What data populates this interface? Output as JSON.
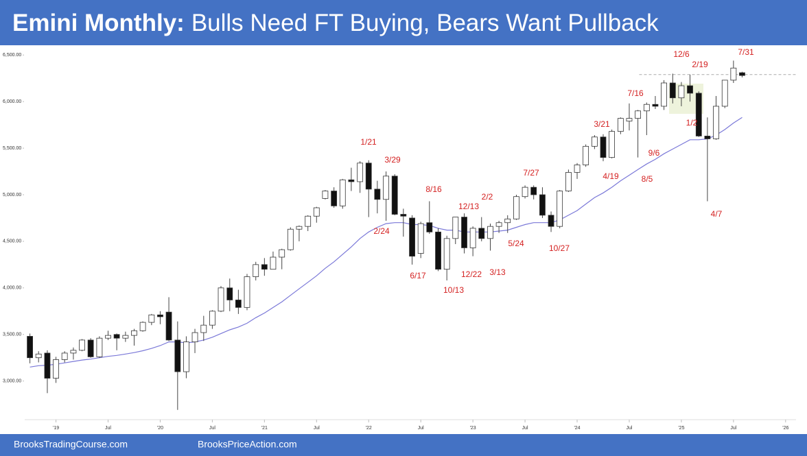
{
  "chart_data": {
    "type": "candlestick",
    "title_bold": "Emini Monthly:",
    "title": "Bulls Need FT Buying, Bears Want Pullback",
    "footer": [
      "BrooksTradingCourse.com",
      "BrooksPriceAction.com"
    ],
    "x": [
      2018.75,
      2018.833,
      2018.917,
      2019.0,
      2019.083,
      2019.167,
      2019.25,
      2019.333,
      2019.417,
      2019.5,
      2019.583,
      2019.667,
      2019.75,
      2019.833,
      2019.917,
      2020.0,
      2020.083,
      2020.167,
      2020.25,
      2020.333,
      2020.417,
      2020.5,
      2020.583,
      2020.667,
      2020.75,
      2020.833,
      2020.917,
      2021.0,
      2021.083,
      2021.167,
      2021.25,
      2021.333,
      2021.417,
      2021.5,
      2021.583,
      2021.667,
      2021.75,
      2021.833,
      2021.917,
      2022.0,
      2022.083,
      2022.167,
      2022.25,
      2022.333,
      2022.417,
      2022.5,
      2022.583,
      2022.667,
      2022.75,
      2022.833,
      2022.917,
      2023.0,
      2023.083,
      2023.167,
      2023.25,
      2023.333,
      2023.417,
      2023.5,
      2023.583,
      2023.667,
      2023.75,
      2023.833,
      2023.917,
      2024.0,
      2024.083,
      2024.167,
      2024.25,
      2024.333,
      2024.417,
      2024.5,
      2024.583,
      2024.667,
      2024.75,
      2024.833,
      2024.917,
      2025.0,
      2025.083,
      2025.167,
      2025.25,
      2025.333,
      2025.417,
      2025.5,
      2025.583
    ],
    "open": [
      3480,
      3250,
      3300,
      3030,
      3230,
      3300,
      3330,
      3440,
      3260,
      3460,
      3500,
      3460,
      3490,
      3540,
      3630,
      3710,
      3740,
      3440,
      3100,
      3420,
      3520,
      3600,
      3750,
      4000,
      3870,
      3790,
      4120,
      4250,
      4200,
      4330,
      4410,
      4630,
      4660,
      4770,
      4960,
      5040,
      4880,
      5160,
      5140,
      5340,
      5060,
      4950,
      5200,
      4790,
      4750,
      4370,
      4700,
      4600,
      4200,
      4530,
      4760,
      4430,
      4640,
      4530,
      4660,
      4700,
      4740,
      4980,
      5080,
      5000,
      4780,
      4660,
      5040,
      5240,
      5320,
      5520,
      5620,
      5400,
      5680,
      5790,
      5820,
      5900,
      5970,
      5950,
      6200,
      6040,
      6170,
      6090,
      5630,
      5600,
      5950,
      6230,
      6310
    ],
    "high": [
      3510,
      3320,
      3330,
      3260,
      3320,
      3360,
      3450,
      3460,
      3480,
      3540,
      3510,
      3530,
      3560,
      3640,
      3720,
      3750,
      3900,
      3640,
      3480,
      3560,
      3700,
      3760,
      4020,
      4100,
      3980,
      4150,
      4280,
      4320,
      4390,
      4420,
      4650,
      4670,
      4780,
      4870,
      5050,
      5080,
      5170,
      5290,
      5360,
      5370,
      5150,
      5250,
      5220,
      4850,
      4780,
      4710,
      4930,
      4640,
      4560,
      4760,
      4800,
      4660,
      4760,
      4690,
      4720,
      4780,
      5000,
      5100,
      5100,
      5080,
      4820,
      5050,
      5270,
      5340,
      5540,
      5640,
      5650,
      5700,
      5830,
      5980,
      5910,
      5990,
      6060,
      6230,
      6300,
      6210,
      6290,
      6110,
      5830,
      6060,
      6230,
      6440,
      6320
    ],
    "low": [
      3190,
      3200,
      2870,
      2980,
      3200,
      3230,
      3320,
      3250,
      3250,
      3440,
      3330,
      3420,
      3380,
      3530,
      3600,
      3610,
      3430,
      2690,
      3030,
      3300,
      3430,
      3560,
      3740,
      3750,
      3720,
      3760,
      4080,
      4130,
      4200,
      4200,
      4400,
      4500,
      4610,
      4700,
      4950,
      4860,
      4850,
      5040,
      5020,
      4760,
      4800,
      4720,
      4780,
      4550,
      4250,
      4320,
      4580,
      4180,
      4080,
      4470,
      4370,
      4340,
      4500,
      4400,
      4590,
      4590,
      4730,
      4960,
      4950,
      4750,
      4600,
      4640,
      5030,
      5170,
      5300,
      5490,
      5360,
      5390,
      5650,
      5690,
      5400,
      5640,
      5920,
      5910,
      5980,
      5950,
      6000,
      5620,
      4930,
      5590,
      5930,
      6200,
      6260
    ],
    "close": [
      3250,
      3290,
      3030,
      3230,
      3300,
      3330,
      3440,
      3260,
      3460,
      3490,
      3460,
      3490,
      3540,
      3630,
      3710,
      3690,
      3440,
      3100,
      3420,
      3520,
      3600,
      3750,
      4000,
      3870,
      3790,
      4120,
      4250,
      4200,
      4330,
      4410,
      4630,
      4660,
      4770,
      4860,
      5040,
      4880,
      5160,
      5140,
      5340,
      5060,
      4950,
      5200,
      4790,
      4770,
      4340,
      4690,
      4600,
      4200,
      4530,
      4760,
      4430,
      4640,
      4530,
      4660,
      4700,
      4740,
      4980,
      5080,
      5000,
      4780,
      4660,
      5040,
      5240,
      5320,
      5520,
      5620,
      5400,
      5680,
      5820,
      5820,
      5900,
      5970,
      5950,
      6200,
      6040,
      6170,
      6090,
      5630,
      5600,
      5950,
      6230,
      6360,
      6280
    ],
    "line_color": "#7a78d8",
    "line_values": [
      3150,
      3165,
      3170,
      3180,
      3195,
      3210,
      3225,
      3235,
      3250,
      3265,
      3275,
      3290,
      3305,
      3325,
      3350,
      3380,
      3420,
      3420,
      3410,
      3420,
      3440,
      3470,
      3510,
      3550,
      3580,
      3620,
      3680,
      3730,
      3790,
      3850,
      3920,
      3990,
      4060,
      4130,
      4210,
      4280,
      4360,
      4440,
      4530,
      4600,
      4650,
      4690,
      4700,
      4700,
      4680,
      4680,
      4670,
      4640,
      4620,
      4620,
      4600,
      4600,
      4600,
      4600,
      4610,
      4620,
      4650,
      4680,
      4700,
      4700,
      4700,
      4730,
      4780,
      4830,
      4900,
      4970,
      5020,
      5080,
      5150,
      5210,
      5270,
      5330,
      5380,
      5440,
      5490,
      5540,
      5590,
      5590,
      5600,
      5640,
      5700,
      5770,
      5830
    ],
    "hline": 6290,
    "annotations": [
      "12/6",
      "7/31",
      "2/19",
      "7/16",
      "3/21",
      "1/2",
      "1/21",
      "3/29",
      "9/6",
      "4/19",
      "8/5",
      "7/27",
      "8/16",
      "2/2",
      "12/13",
      "4/7",
      "2/24",
      "5/24",
      "10/27",
      "6/17",
      "12/22",
      "3/13",
      "10/13"
    ],
    "annotation_color": "#d42020",
    "ylim": [
      2600,
      6590
    ],
    "yticks": [
      {
        "value": 3000,
        "label": "3,000.00"
      },
      {
        "value": 3500,
        "label": "3,500.00"
      },
      {
        "value": 4000,
        "label": "4,000.00"
      },
      {
        "value": 4500,
        "label": "4,500.00"
      },
      {
        "value": 5000,
        "label": "5,000.00"
      },
      {
        "value": 5500,
        "label": "5,500.00"
      },
      {
        "value": 6000,
        "label": "6,000.00"
      },
      {
        "value": 6500,
        "label": "6,500.00"
      }
    ],
    "xlim": [
      2018.7,
      2026.1
    ],
    "xticks": [
      {
        "value": 2019,
        "label": "'19"
      },
      {
        "value": 2019.5,
        "label": "Jul"
      },
      {
        "value": 2020,
        "label": "'20"
      },
      {
        "value": 2020.5,
        "label": "Jul"
      },
      {
        "value": 2021,
        "label": "'21"
      },
      {
        "value": 2021.5,
        "label": "Jul"
      },
      {
        "value": 2022,
        "label": "'22"
      },
      {
        "value": 2022.5,
        "label": "Jul"
      },
      {
        "value": 2023,
        "label": "'23"
      },
      {
        "value": 2023.5,
        "label": "Jul"
      },
      {
        "value": 2024,
        "label": "'24"
      },
      {
        "value": 2024.5,
        "label": "Jul"
      },
      {
        "value": 2025,
        "label": "'25"
      },
      {
        "value": 2025.5,
        "label": "Jul"
      },
      {
        "value": 2026,
        "label": "'26"
      }
    ]
  }
}
